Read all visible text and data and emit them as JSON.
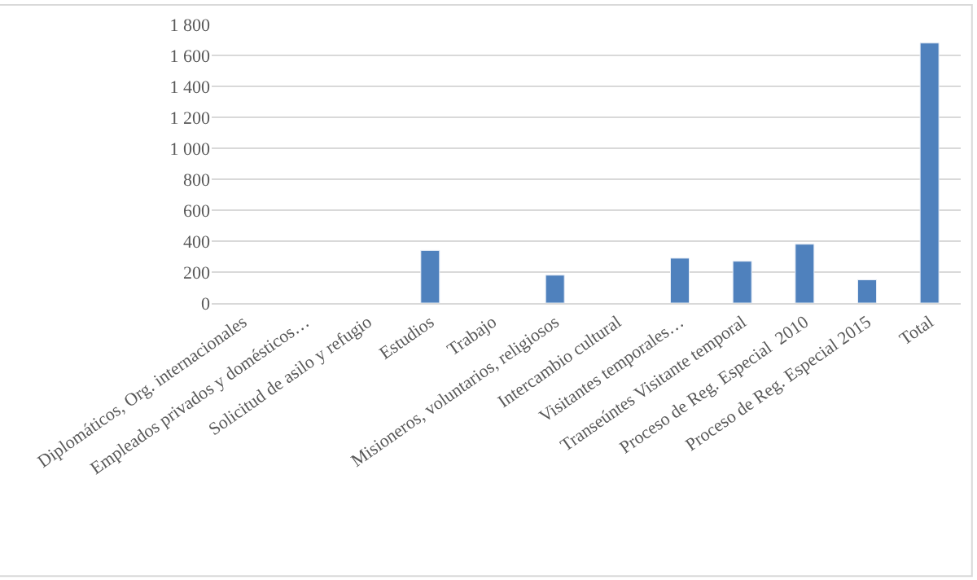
{
  "chart_data": {
    "type": "bar",
    "categories": [
      "Diplomáticos, Org. internacionales",
      "Empleados privados y domésticos…",
      "Solicitud de asilo y refugio",
      "Estudios",
      "Trabajo",
      "Misioneros, voluntarios, religiosos",
      "Intercambio cultural",
      "Visitantes temporales…",
      "Transeúntes Visitante temporal",
      "Proceso de Reg. Especial  2010",
      "Proceso de Reg. Especial 2015",
      "Total"
    ],
    "values": [
      null,
      null,
      null,
      340,
      null,
      180,
      null,
      290,
      270,
      380,
      150,
      1680
    ],
    "color": "#4f81bd",
    "ylim": [
      0,
      1800
    ],
    "yticks": [
      0,
      200,
      400,
      600,
      800,
      {
        "value": 1000,
        "label": "1 000"
      },
      {
        "value": 1200,
        "label": "1 200"
      },
      {
        "value": 1400,
        "label": "1 400"
      },
      {
        "value": 1600,
        "label": "1 600"
      },
      {
        "value": 1800,
        "label": "1 800"
      }
    ],
    "grid": "y",
    "legend": false
  }
}
